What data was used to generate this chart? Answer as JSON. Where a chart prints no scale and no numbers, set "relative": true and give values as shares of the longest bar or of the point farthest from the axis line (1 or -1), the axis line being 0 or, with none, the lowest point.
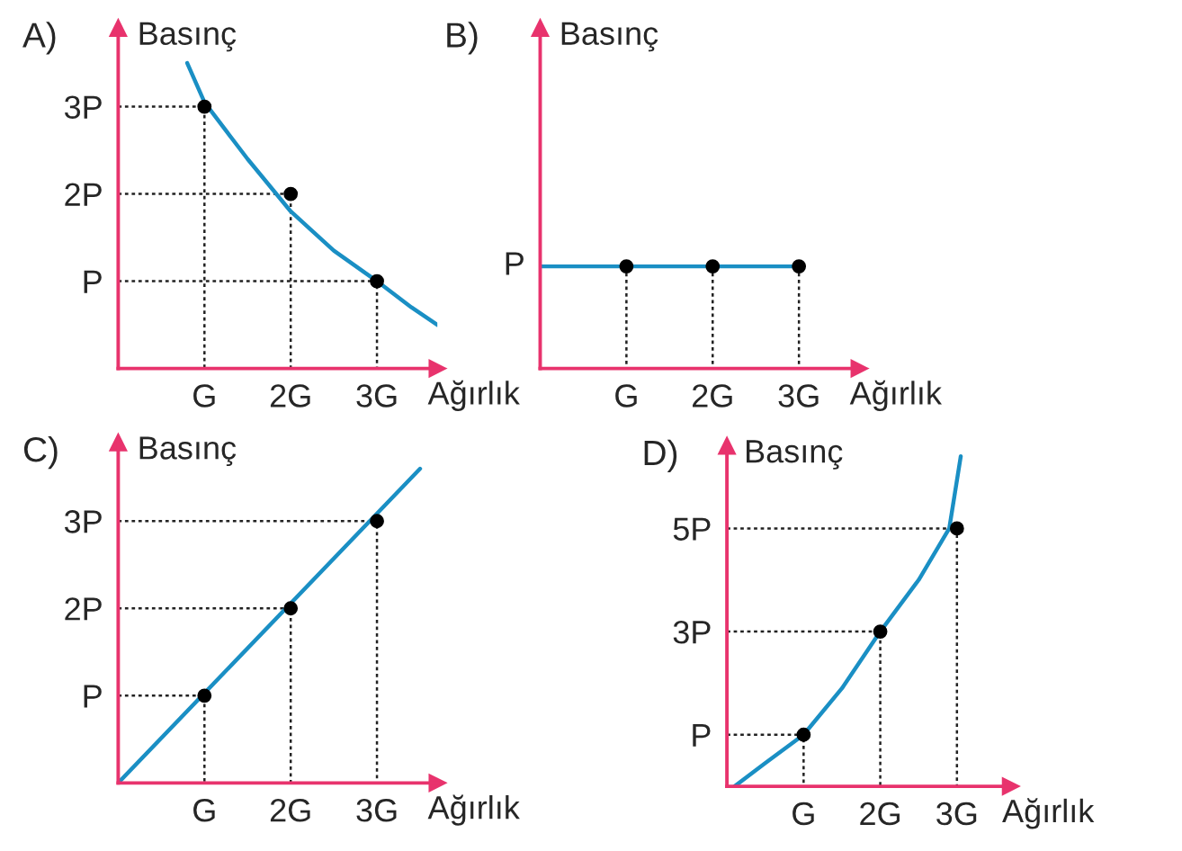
{
  "chart_data": [
    {
      "type": "line",
      "title": "A)",
      "xlabel": "Ağırlık",
      "ylabel": "Basınç",
      "xlim": [
        0,
        3.7
      ],
      "ylim": [
        0,
        3.9
      ],
      "xticks": [
        {
          "value": 1,
          "label": "G"
        },
        {
          "value": 2,
          "label": "2G"
        },
        {
          "value": 3,
          "label": "3G"
        }
      ],
      "yticks": [
        {
          "value": 1,
          "label": "P"
        },
        {
          "value": 2,
          "label": "2P"
        },
        {
          "value": 3,
          "label": "3P"
        }
      ],
      "legend": false,
      "series": [
        {
          "type": "line",
          "line_style": "dotted",
          "color": "#222222",
          "x": [
            0,
            1,
            1
          ],
          "values": [
            3,
            3,
            0
          ]
        },
        {
          "type": "line",
          "line_style": "dotted",
          "color": "#222222",
          "x": [
            0,
            2,
            2
          ],
          "values": [
            2,
            2,
            0
          ]
        },
        {
          "type": "line",
          "line_style": "dotted",
          "color": "#222222",
          "x": [
            0,
            3,
            3
          ],
          "values": [
            1,
            1,
            0
          ]
        },
        {
          "type": "line",
          "color": "#1a8fc4",
          "x": [
            0.8,
            1,
            1.5,
            2,
            2.5,
            3,
            3.4,
            3.7
          ],
          "values": [
            3.5,
            3.05,
            2.4,
            1.8,
            1.35,
            1.0,
            0.7,
            0.5
          ]
        },
        {
          "type": "scatter",
          "color": "#000000",
          "x": [
            1,
            2,
            3
          ],
          "values": [
            3,
            2,
            1
          ]
        }
      ]
    },
    {
      "type": "line",
      "title": "B)",
      "xlabel": "Ağırlık",
      "ylabel": "Basınç",
      "xlim": [
        0,
        3.7
      ],
      "relative": true,
      "xticks": [
        {
          "value": 1,
          "label": "G"
        },
        {
          "value": 2,
          "label": "2G"
        },
        {
          "value": 3,
          "label": "3G"
        }
      ],
      "annotations": [
        {
          "text": "P",
          "x": 0,
          "y": 1
        }
      ],
      "legend": false,
      "series": [
        {
          "type": "line",
          "line_style": "dotted",
          "color": "#222222",
          "x": [
            1,
            1
          ],
          "values": [
            1,
            0
          ]
        },
        {
          "type": "line",
          "line_style": "dotted",
          "color": "#222222",
          "x": [
            2,
            2
          ],
          "values": [
            1,
            0
          ]
        },
        {
          "type": "line",
          "line_style": "dotted",
          "color": "#222222",
          "x": [
            3,
            3
          ],
          "values": [
            1,
            0
          ]
        },
        {
          "type": "line",
          "color": "#1a8fc4",
          "x": [
            0,
            3
          ],
          "values": [
            1,
            1
          ]
        },
        {
          "type": "scatter",
          "color": "#000000",
          "x": [
            1,
            2,
            3
          ],
          "values": [
            1,
            1,
            1
          ]
        }
      ]
    },
    {
      "type": "line",
      "title": "C)",
      "xlabel": "Ağırlık",
      "ylabel": "Basınç",
      "xlim": [
        0,
        3.7
      ],
      "ylim": [
        0,
        3.9
      ],
      "xticks": [
        {
          "value": 1,
          "label": "G"
        },
        {
          "value": 2,
          "label": "2G"
        },
        {
          "value": 3,
          "label": "3G"
        }
      ],
      "yticks": [
        {
          "value": 1,
          "label": "P"
        },
        {
          "value": 2,
          "label": "2P"
        },
        {
          "value": 3,
          "label": "3P"
        }
      ],
      "legend": false,
      "series": [
        {
          "type": "line",
          "line_style": "dotted",
          "color": "#222222",
          "x": [
            0,
            1,
            1
          ],
          "values": [
            1,
            1,
            0
          ]
        },
        {
          "type": "line",
          "line_style": "dotted",
          "color": "#222222",
          "x": [
            0,
            2,
            2
          ],
          "values": [
            2,
            2,
            0
          ]
        },
        {
          "type": "line",
          "line_style": "dotted",
          "color": "#222222",
          "x": [
            0,
            3,
            3
          ],
          "values": [
            3,
            3,
            0
          ]
        },
        {
          "type": "line",
          "color": "#1a8fc4",
          "x": [
            0,
            3.5
          ],
          "values": [
            0,
            3.6
          ]
        },
        {
          "type": "scatter",
          "color": "#000000",
          "x": [
            1,
            2,
            3
          ],
          "values": [
            1,
            2,
            3
          ]
        }
      ]
    },
    {
      "type": "line",
      "title": "D)",
      "xlabel": "Ağırlık",
      "ylabel": "Basınç",
      "xlim": [
        0,
        3.7
      ],
      "ylim": [
        0,
        6.6
      ],
      "xticks": [
        {
          "value": 1,
          "label": "G"
        },
        {
          "value": 2,
          "label": "2G"
        },
        {
          "value": 3,
          "label": "3G"
        }
      ],
      "yticks": [
        {
          "value": 1,
          "label": "P"
        },
        {
          "value": 3,
          "label": "3P"
        },
        {
          "value": 5,
          "label": "5P"
        }
      ],
      "legend": false,
      "series": [
        {
          "type": "line",
          "line_style": "dotted",
          "color": "#222222",
          "x": [
            0,
            1,
            1
          ],
          "values": [
            1,
            1,
            0
          ]
        },
        {
          "type": "line",
          "line_style": "dotted",
          "color": "#222222",
          "x": [
            0,
            2,
            2
          ],
          "values": [
            3,
            3,
            0
          ]
        },
        {
          "type": "line",
          "line_style": "dotted",
          "color": "#222222",
          "x": [
            0,
            3,
            3
          ],
          "values": [
            5,
            5,
            0
          ]
        },
        {
          "type": "line",
          "color": "#1a8fc4",
          "x": [
            0.1,
            0.5,
            1,
            1.5,
            2,
            2.5,
            2.9,
            3.05
          ],
          "values": [
            0,
            0.45,
            1,
            1.9,
            3,
            4,
            5,
            6.4
          ]
        },
        {
          "type": "scatter",
          "color": "#000000",
          "x": [
            1,
            2,
            3
          ],
          "values": [
            1,
            3,
            5
          ]
        }
      ]
    }
  ]
}
